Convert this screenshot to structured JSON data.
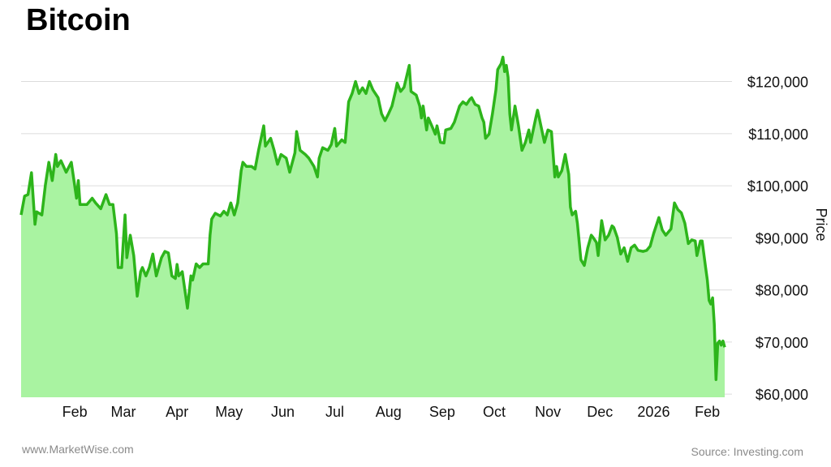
{
  "title": "Bitcoin",
  "footer": {
    "left": "www.MarketWise.com",
    "right": "Source: Investing.com"
  },
  "chart_data": {
    "type": "area",
    "title": "Bitcoin",
    "xlabel": "",
    "ylabel": "Price",
    "ylim": [
      59400,
      126000
    ],
    "xlim": [
      "2025-01-01",
      "2026-02-11"
    ],
    "grid": true,
    "y_axis_position": "right",
    "line_color": "#2db51b",
    "fill_color": "#a9f3a1",
    "x_ticks": [
      {
        "date": "2025-02-01",
        "label": "Feb"
      },
      {
        "date": "2025-03-01",
        "label": "Mar"
      },
      {
        "date": "2025-04-01",
        "label": "Apr"
      },
      {
        "date": "2025-05-01",
        "label": "May"
      },
      {
        "date": "2025-06-01",
        "label": "Jun"
      },
      {
        "date": "2025-07-01",
        "label": "Jul"
      },
      {
        "date": "2025-08-01",
        "label": "Aug"
      },
      {
        "date": "2025-09-01",
        "label": "Sep"
      },
      {
        "date": "2025-10-01",
        "label": "Oct"
      },
      {
        "date": "2025-11-01",
        "label": "Nov"
      },
      {
        "date": "2025-12-01",
        "label": "Dec"
      },
      {
        "date": "2026-01-01",
        "label": "2026"
      },
      {
        "date": "2026-02-01",
        "label": "Feb"
      }
    ],
    "y_ticks": [
      {
        "value": 60000,
        "label": "$60,000"
      },
      {
        "value": 70000,
        "label": "$70,000"
      },
      {
        "value": 80000,
        "label": "$80,000"
      },
      {
        "value": 90000,
        "label": "$90,000"
      },
      {
        "value": 100000,
        "label": "$100,000"
      },
      {
        "value": 110000,
        "label": "$110,000"
      },
      {
        "value": 120000,
        "label": "$120,000"
      }
    ],
    "points": [
      [
        "2025-01-01",
        94400
      ],
      [
        "2025-01-03",
        98000
      ],
      [
        "2025-01-05",
        98300
      ],
      [
        "2025-01-07",
        102500
      ],
      [
        "2025-01-09",
        92600
      ],
      [
        "2025-01-10",
        95000
      ],
      [
        "2025-01-13",
        94400
      ],
      [
        "2025-01-15",
        100100
      ],
      [
        "2025-01-17",
        104500
      ],
      [
        "2025-01-19",
        101000
      ],
      [
        "2025-01-21",
        106000
      ],
      [
        "2025-01-22",
        103700
      ],
      [
        "2025-01-24",
        104800
      ],
      [
        "2025-01-27",
        102600
      ],
      [
        "2025-01-30",
        104500
      ],
      [
        "2025-02-02",
        97600
      ],
      [
        "2025-02-03",
        101000
      ],
      [
        "2025-02-04",
        96400
      ],
      [
        "2025-02-08",
        96400
      ],
      [
        "2025-02-11",
        97600
      ],
      [
        "2025-02-13",
        96700
      ],
      [
        "2025-02-16",
        95600
      ],
      [
        "2025-02-19",
        98300
      ],
      [
        "2025-02-21",
        96400
      ],
      [
        "2025-02-23",
        96400
      ],
      [
        "2025-02-25",
        90800
      ],
      [
        "2025-02-26",
        84300
      ],
      [
        "2025-02-28",
        84300
      ],
      [
        "2025-03-02",
        94400
      ],
      [
        "2025-03-03",
        86200
      ],
      [
        "2025-03-05",
        90500
      ],
      [
        "2025-03-07",
        86600
      ],
      [
        "2025-03-09",
        78800
      ],
      [
        "2025-03-11",
        83500
      ],
      [
        "2025-03-12",
        84300
      ],
      [
        "2025-03-14",
        82700
      ],
      [
        "2025-03-16",
        84300
      ],
      [
        "2025-03-18",
        86900
      ],
      [
        "2025-03-20",
        82700
      ],
      [
        "2025-03-23",
        86200
      ],
      [
        "2025-03-25",
        87400
      ],
      [
        "2025-03-27",
        87100
      ],
      [
        "2025-03-29",
        82700
      ],
      [
        "2025-03-31",
        82200
      ],
      [
        "2025-04-01",
        84900
      ],
      [
        "2025-04-02",
        82700
      ],
      [
        "2025-04-04",
        83500
      ],
      [
        "2025-04-06",
        78800
      ],
      [
        "2025-04-07",
        76500
      ],
      [
        "2025-04-09",
        82700
      ],
      [
        "2025-04-10",
        81900
      ],
      [
        "2025-04-12",
        85000
      ],
      [
        "2025-04-14",
        84300
      ],
      [
        "2025-04-16",
        85000
      ],
      [
        "2025-04-19",
        85000
      ],
      [
        "2025-04-20",
        90500
      ],
      [
        "2025-04-21",
        93600
      ],
      [
        "2025-04-23",
        94700
      ],
      [
        "2025-04-26",
        94200
      ],
      [
        "2025-04-28",
        95100
      ],
      [
        "2025-04-30",
        94400
      ],
      [
        "2025-05-02",
        96700
      ],
      [
        "2025-05-04",
        94400
      ],
      [
        "2025-05-06",
        96700
      ],
      [
        "2025-05-08",
        102900
      ],
      [
        "2025-05-09",
        104500
      ],
      [
        "2025-05-11",
        103700
      ],
      [
        "2025-05-14",
        103700
      ],
      [
        "2025-05-16",
        103200
      ],
      [
        "2025-05-18",
        106800
      ],
      [
        "2025-05-21",
        111500
      ],
      [
        "2025-05-22",
        107600
      ],
      [
        "2025-05-25",
        109100
      ],
      [
        "2025-05-27",
        106800
      ],
      [
        "2025-05-29",
        104100
      ],
      [
        "2025-05-31",
        106000
      ],
      [
        "2025-06-03",
        105300
      ],
      [
        "2025-06-05",
        102600
      ],
      [
        "2025-06-08",
        106300
      ],
      [
        "2025-06-09",
        110400
      ],
      [
        "2025-06-11",
        106800
      ],
      [
        "2025-06-14",
        106000
      ],
      [
        "2025-06-16",
        105300
      ],
      [
        "2025-06-19",
        103700
      ],
      [
        "2025-06-21",
        101700
      ],
      [
        "2025-06-22",
        105300
      ],
      [
        "2025-06-24",
        107300
      ],
      [
        "2025-06-27",
        106800
      ],
      [
        "2025-06-29",
        107900
      ],
      [
        "2025-07-01",
        111000
      ],
      [
        "2025-07-02",
        107600
      ],
      [
        "2025-07-05",
        108800
      ],
      [
        "2025-07-07",
        108300
      ],
      [
        "2025-07-09",
        116100
      ],
      [
        "2025-07-11",
        117700
      ],
      [
        "2025-07-13",
        120000
      ],
      [
        "2025-07-15",
        117700
      ],
      [
        "2025-07-17",
        118800
      ],
      [
        "2025-07-19",
        117700
      ],
      [
        "2025-07-21",
        120000
      ],
      [
        "2025-07-23",
        118400
      ],
      [
        "2025-07-26",
        116900
      ],
      [
        "2025-07-28",
        113800
      ],
      [
        "2025-07-30",
        112500
      ],
      [
        "2025-08-01",
        113800
      ],
      [
        "2025-08-03",
        115300
      ],
      [
        "2025-08-05",
        118100
      ],
      [
        "2025-08-06",
        119700
      ],
      [
        "2025-08-08",
        118100
      ],
      [
        "2025-08-10",
        118900
      ],
      [
        "2025-08-13",
        123100
      ],
      [
        "2025-08-14",
        118100
      ],
      [
        "2025-08-17",
        117400
      ],
      [
        "2025-08-19",
        115300
      ],
      [
        "2025-08-20",
        113000
      ],
      [
        "2025-08-21",
        115300
      ],
      [
        "2025-08-23",
        110700
      ],
      [
        "2025-08-24",
        113000
      ],
      [
        "2025-08-26",
        111500
      ],
      [
        "2025-08-28",
        109900
      ],
      [
        "2025-08-29",
        111500
      ],
      [
        "2025-08-31",
        108300
      ],
      [
        "2025-09-02",
        108200
      ],
      [
        "2025-09-03",
        110700
      ],
      [
        "2025-09-06",
        111000
      ],
      [
        "2025-09-08",
        112200
      ],
      [
        "2025-09-11",
        115300
      ],
      [
        "2025-09-13",
        116100
      ],
      [
        "2025-09-15",
        115600
      ],
      [
        "2025-09-17",
        116600
      ],
      [
        "2025-09-18",
        116900
      ],
      [
        "2025-09-20",
        115600
      ],
      [
        "2025-09-22",
        115300
      ],
      [
        "2025-09-24",
        113000
      ],
      [
        "2025-09-25",
        112200
      ],
      [
        "2025-09-26",
        109100
      ],
      [
        "2025-09-28",
        109900
      ],
      [
        "2025-09-30",
        113800
      ],
      [
        "2025-10-02",
        118400
      ],
      [
        "2025-10-03",
        122300
      ],
      [
        "2025-10-05",
        123400
      ],
      [
        "2025-10-06",
        124700
      ],
      [
        "2025-10-07",
        121900
      ],
      [
        "2025-10-08",
        123100
      ],
      [
        "2025-10-09",
        120800
      ],
      [
        "2025-10-10",
        113800
      ],
      [
        "2025-10-11",
        110700
      ],
      [
        "2025-10-13",
        115300
      ],
      [
        "2025-10-15",
        111500
      ],
      [
        "2025-10-17",
        106800
      ],
      [
        "2025-10-19",
        108300
      ],
      [
        "2025-10-21",
        110700
      ],
      [
        "2025-10-22",
        108300
      ],
      [
        "2025-10-25",
        113000
      ],
      [
        "2025-10-26",
        114500
      ],
      [
        "2025-10-27",
        113000
      ],
      [
        "2025-10-30",
        108300
      ],
      [
        "2025-11-01",
        110700
      ],
      [
        "2025-11-03",
        110400
      ],
      [
        "2025-11-05",
        101700
      ],
      [
        "2025-11-06",
        103700
      ],
      [
        "2025-11-07",
        101700
      ],
      [
        "2025-11-09",
        102900
      ],
      [
        "2025-11-11",
        106000
      ],
      [
        "2025-11-13",
        102200
      ],
      [
        "2025-11-14",
        95900
      ],
      [
        "2025-11-15",
        94400
      ],
      [
        "2025-11-17",
        95100
      ],
      [
        "2025-11-18",
        92800
      ],
      [
        "2025-11-20",
        85800
      ],
      [
        "2025-11-22",
        84700
      ],
      [
        "2025-11-24",
        88100
      ],
      [
        "2025-11-26",
        90500
      ],
      [
        "2025-11-27",
        90100
      ],
      [
        "2025-11-29",
        89100
      ],
      [
        "2025-11-30",
        86600
      ],
      [
        "2025-12-02",
        93300
      ],
      [
        "2025-12-04",
        89600
      ],
      [
        "2025-12-06",
        90500
      ],
      [
        "2025-12-08",
        92300
      ],
      [
        "2025-12-09",
        92000
      ],
      [
        "2025-12-11",
        90100
      ],
      [
        "2025-12-13",
        86900
      ],
      [
        "2025-12-15",
        88100
      ],
      [
        "2025-12-17",
        85500
      ],
      [
        "2025-12-19",
        88100
      ],
      [
        "2025-12-21",
        88600
      ],
      [
        "2025-12-23",
        87600
      ],
      [
        "2025-12-26",
        87400
      ],
      [
        "2025-12-28",
        87600
      ],
      [
        "2025-12-30",
        88400
      ],
      [
        "2026-01-01",
        90800
      ],
      [
        "2026-01-04",
        93900
      ],
      [
        "2026-01-06",
        91500
      ],
      [
        "2026-01-08",
        90500
      ],
      [
        "2026-01-11",
        91700
      ],
      [
        "2026-01-13",
        96700
      ],
      [
        "2026-01-15",
        95400
      ],
      [
        "2026-01-17",
        94800
      ],
      [
        "2026-01-19",
        92800
      ],
      [
        "2026-01-21",
        88900
      ],
      [
        "2026-01-23",
        89600
      ],
      [
        "2026-01-25",
        89400
      ],
      [
        "2026-01-26",
        86600
      ],
      [
        "2026-01-28",
        89400
      ],
      [
        "2026-01-29",
        89400
      ],
      [
        "2026-01-31",
        84300
      ],
      [
        "2026-02-01",
        81900
      ],
      [
        "2026-02-02",
        78000
      ],
      [
        "2026-02-03",
        77300
      ],
      [
        "2026-02-04",
        78500
      ],
      [
        "2026-02-05",
        73400
      ],
      [
        "2026-02-06",
        62800
      ],
      [
        "2026-02-07",
        69800
      ],
      [
        "2026-02-08",
        70200
      ],
      [
        "2026-02-09",
        69400
      ],
      [
        "2026-02-10",
        70200
      ],
      [
        "2026-02-11",
        69000
      ]
    ]
  }
}
